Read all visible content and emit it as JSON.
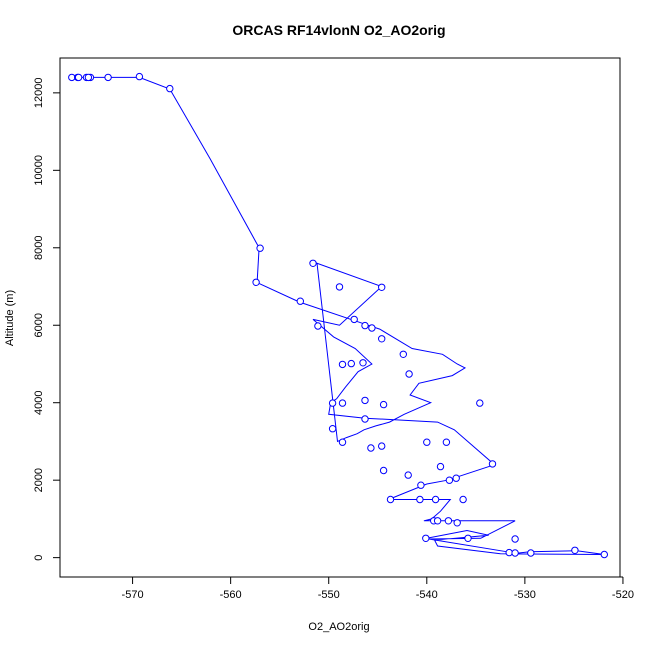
{
  "chart_data": {
    "type": "line",
    "title": "ORCAS RF14vlonN O2_AO2orig",
    "xlabel": "O2_AO2orig",
    "ylabel": "Altitude (m)",
    "xlim": [
      -577.4,
      -520.3
    ],
    "ylim": [
      -500,
      12900
    ],
    "x_ticks": [
      -570,
      -560,
      -550,
      -540,
      -530,
      -520
    ],
    "y_ticks": [
      0,
      2000,
      4000,
      6000,
      8000,
      10000,
      12000
    ],
    "grid": false,
    "color": "#0000ff",
    "marker": "open-circle",
    "x": [
      -576.1,
      -575.8,
      -575.4,
      -574.6,
      -574.3,
      -572.4,
      -569.3,
      -566.2,
      -562.1,
      -557.1,
      -557.3,
      -553.0,
      -546.0,
      -544.8,
      -541.5,
      -538.4,
      -536.9,
      -536.1,
      -537.4,
      -540.8,
      -541.7,
      -539.6,
      -542.3,
      -543.8,
      -545.2,
      -546.4,
      -547.1,
      -548.2,
      -549.1,
      -551.2,
      -544.6,
      -548.9,
      -551.6,
      -549.5,
      -547.3,
      -545.6,
      -547.0,
      -548.3,
      -549.2,
      -549.8,
      -550.0,
      -546.3,
      -538.9,
      -537.2,
      -533.1,
      -537.9,
      -540.0,
      -543.9,
      -537.6,
      -538.6,
      -539.5,
      -540.3,
      -531.0,
      -534.5,
      -539.8,
      -531.8,
      -531.3,
      -529.5,
      -524.7,
      -521.9,
      -532.5,
      -538.9,
      -539.2,
      -533.7,
      -535.9,
      -540.0
    ],
    "y": [
      12400,
      12400,
      12400,
      12400,
      12400,
      12400,
      12400,
      12100,
      10300,
      8000,
      7100,
      6600,
      6000,
      5900,
      5400,
      5250,
      5000,
      4900,
      4700,
      4500,
      4200,
      4000,
      3700,
      3500,
      3400,
      3300,
      3200,
      3100,
      3000,
      7600,
      7000,
      6000,
      6150,
      5700,
      5400,
      5000,
      4800,
      4400,
      4100,
      4000,
      3700,
      3600,
      3500,
      3300,
      2400,
      2000,
      1900,
      1500,
      1500,
      1200,
      1000,
      950,
      950,
      500,
      480,
      150,
      100,
      150,
      180,
      80,
      100,
      300,
      450,
      580,
      700,
      500
    ],
    "points": [
      [
        -576.2,
        12400
      ],
      [
        -575.6,
        12400
      ],
      [
        -574.7,
        12400
      ],
      [
        -574.3,
        12400
      ],
      [
        -572.5,
        12400
      ],
      [
        -569.3,
        12420
      ],
      [
        -566.2,
        12110
      ],
      [
        -575.5,
        12400
      ],
      [
        -574.5,
        12400
      ],
      [
        -557.0,
        7990
      ],
      [
        -557.4,
        7110
      ],
      [
        -552.9,
        6620
      ],
      [
        -546.3,
        5990
      ],
      [
        -545.6,
        5930
      ],
      [
        -544.6,
        5650
      ],
      [
        -542.4,
        5250
      ],
      [
        -541.8,
        4740
      ],
      [
        -548.6,
        4990
      ],
      [
        -547.7,
        5010
      ],
      [
        -546.5,
        5030
      ],
      [
        -544.4,
        3950
      ],
      [
        -551.6,
        7600
      ],
      [
        -548.9,
        6990
      ],
      [
        -544.6,
        6980
      ],
      [
        -551.1,
        5980
      ],
      [
        -547.4,
        6150
      ],
      [
        -549.6,
        3990
      ],
      [
        -548.6,
        3990
      ],
      [
        -549.6,
        3330
      ],
      [
        -548.6,
        2980
      ],
      [
        -545.7,
        2830
      ],
      [
        -544.6,
        2880
      ],
      [
        -546.3,
        4060
      ],
      [
        -546.3,
        3580
      ],
      [
        -544.4,
        2250
      ],
      [
        -541.9,
        2130
      ],
      [
        -540.6,
        1870
      ],
      [
        -543.7,
        1500
      ],
      [
        -534.6,
        3990
      ],
      [
        -540.0,
        2980
      ],
      [
        -538.0,
        2980
      ],
      [
        -538.6,
        2350
      ],
      [
        -533.3,
        2420
      ],
      [
        -537.0,
        2050
      ],
      [
        -537.7,
        2000
      ],
      [
        -536.3,
        1500
      ],
      [
        -539.1,
        1500
      ],
      [
        -540.7,
        1500
      ],
      [
        -539.3,
        950
      ],
      [
        -538.9,
        950
      ],
      [
        -537.8,
        950
      ],
      [
        -536.9,
        900
      ],
      [
        -540.1,
        500
      ],
      [
        -535.8,
        500
      ],
      [
        -531.0,
        480
      ],
      [
        -531.6,
        130
      ],
      [
        -531.0,
        120
      ],
      [
        -529.4,
        120
      ],
      [
        -524.9,
        190
      ],
      [
        -521.9,
        80
      ]
    ]
  }
}
